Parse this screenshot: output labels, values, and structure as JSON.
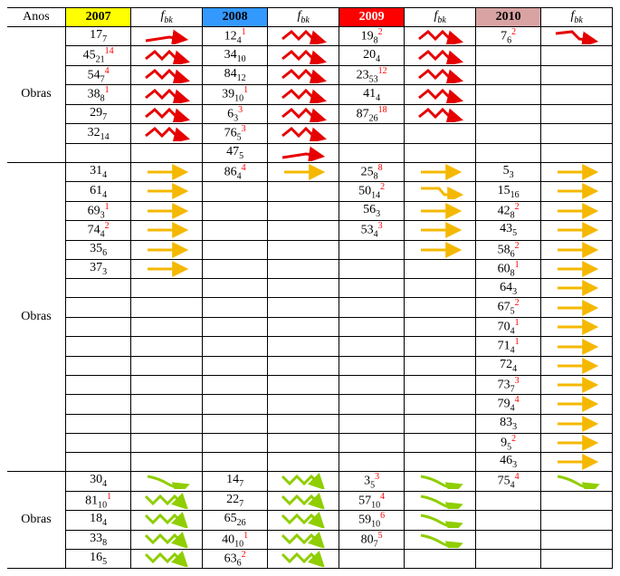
{
  "header": {
    "anos": "Anos",
    "years": [
      "2007",
      "2008",
      "2009",
      "2010"
    ],
    "fbk": "f",
    "fbk_sub": "bk",
    "year_colors": {
      "2007": "#ffff00",
      "2008": "#3399ff",
      "2009": "#ff0000",
      "2010": "#d9a3a3"
    }
  },
  "icon_colors": {
    "red": "#e60000",
    "yellow": "#f5b800",
    "green": "#8fce00"
  },
  "groups": [
    {
      "label": "Obras",
      "rows": [
        {
          "c2007": {
            "main": "17",
            "sub": "7"
          },
          "i2007": "red-up",
          "c2008": {
            "main": "12",
            "sub": "4",
            "sup": "1"
          },
          "i2008": "red-zz",
          "c2009": {
            "main": "19",
            "sub": "8",
            "sup": "2"
          },
          "i2009": "red-zz",
          "c2010": {
            "main": "7",
            "sub": "6",
            "sup": "2"
          },
          "i2010": "red-down"
        },
        {
          "c2007": {
            "main": "45",
            "sub": "21",
            "sup": "14"
          },
          "i2007": "red-zz",
          "c2008": {
            "main": "34",
            "sub": "10"
          },
          "i2008": "red-zz",
          "c2009": {
            "main": "20",
            "sub": "4"
          },
          "i2009": "red-zz"
        },
        {
          "c2007": {
            "main": "54",
            "sub": "7",
            "sup": "4"
          },
          "i2007": "red-zz",
          "c2008": {
            "main": "84",
            "sub": "12"
          },
          "i2008": "red-zz",
          "c2009": {
            "main": "23",
            "sub": "53",
            "sup": "12"
          },
          "i2009": "red-zz"
        },
        {
          "c2007": {
            "main": "38",
            "sub": "8",
            "sup": "1"
          },
          "i2007": "red-zz",
          "c2008": {
            "main": "39",
            "sub": "10",
            "sup": "1"
          },
          "i2008": "red-zz",
          "c2009": {
            "main": "41",
            "sub": "4"
          },
          "i2009": "red-zz"
        },
        {
          "c2007": {
            "main": "29",
            "sub": "7"
          },
          "i2007": "red-zz",
          "c2008": {
            "main": "6",
            "sub": "3",
            "sup": "3"
          },
          "i2008": "red-zz",
          "c2009": {
            "main": "87",
            "sub": "26",
            "sup": "18"
          },
          "i2009": "red-zz"
        },
        {
          "c2007": {
            "main": "32",
            "sub": "14"
          },
          "i2007": "red-zz",
          "c2008": {
            "main": "76",
            "sub": "5",
            "sup": "3"
          },
          "i2008": "red-zz"
        },
        {
          "c2008": {
            "main": "47",
            "sub": "5"
          },
          "i2008": "red-up"
        }
      ]
    },
    {
      "label": "Obras",
      "rows": [
        {
          "c2007": {
            "main": "31",
            "sub": "4"
          },
          "i2007": "yel",
          "c2008": {
            "main": "86",
            "sub": "4",
            "sup": "4"
          },
          "i2008": "yel",
          "c2009": {
            "main": "25",
            "sub": "8",
            "sup": "8"
          },
          "i2009": "yel",
          "c2010": {
            "main": "5",
            "sub": "3"
          },
          "i2010": "yel"
        },
        {
          "c2007": {
            "main": "61",
            "sub": "4"
          },
          "i2007": "yel",
          "c2009": {
            "main": "50",
            "sub": "14",
            "sup": "2"
          },
          "i2009": "yel-step",
          "c2010": {
            "main": "15",
            "sub": "16"
          },
          "i2010": "yel"
        },
        {
          "c2007": {
            "main": "69",
            "sub": "3",
            "sup": "1"
          },
          "i2007": "yel",
          "c2009": {
            "main": "56",
            "sub": "3"
          },
          "i2009": "yel",
          "c2010": {
            "main": "42",
            "sub": "8",
            "sup": "2"
          },
          "i2010": "yel"
        },
        {
          "c2007": {
            "main": "74",
            "sub": "4",
            "sup": "2"
          },
          "i2007": "yel",
          "c2009": {
            "main": "53",
            "sub": "4",
            "sup": "3"
          },
          "i2009": "yel",
          "c2010": {
            "main": "43",
            "sub": "5"
          },
          "i2010": "yel"
        },
        {
          "c2007": {
            "main": "35",
            "sub": "6"
          },
          "i2007": "yel",
          "i2009": "yel",
          "c2010": {
            "main": "58",
            "sub": "6",
            "sup": "2"
          },
          "i2010": "yel"
        },
        {
          "c2007": {
            "main": "37",
            "sub": "3"
          },
          "i2007": "yel",
          "c2010": {
            "main": "60",
            "sub": "8",
            "sup": "1"
          },
          "i2010": "yel"
        },
        {
          "c2010": {
            "main": "64",
            "sub": "3"
          },
          "i2010": "yel"
        },
        {
          "c2010": {
            "main": "67",
            "sub": "5",
            "sup": "2"
          },
          "i2010": "yel"
        },
        {
          "c2010": {
            "main": "70",
            "sub": "4",
            "sup": "1"
          },
          "i2010": "yel"
        },
        {
          "c2010": {
            "main": "71",
            "sub": "4",
            "sup": "1"
          },
          "i2010": "yel"
        },
        {
          "c2010": {
            "main": "72",
            "sub": "4"
          },
          "i2010": "yel"
        },
        {
          "c2010": {
            "main": "73",
            "sub": "7",
            "sup": "3"
          },
          "i2010": "yel"
        },
        {
          "c2010": {
            "main": "79",
            "sub": "4",
            "sup": "4"
          },
          "i2010": "yel"
        },
        {
          "c2010": {
            "main": "83",
            "sub": "3"
          },
          "i2010": "yel"
        },
        {
          "c2010": {
            "main": "9",
            "sub": "5",
            "sup": "2"
          },
          "i2010": "yel"
        },
        {
          "c2010": {
            "main": "46",
            "sub": "3"
          },
          "i2010": "yel"
        }
      ]
    },
    {
      "label": "Obras",
      "rows": [
        {
          "c2007": {
            "main": "30",
            "sub": "4"
          },
          "i2007": "grn-curve",
          "c2008": {
            "main": "14",
            "sub": "7"
          },
          "i2008": "grn-zz",
          "c2009": {
            "main": "3",
            "sub": "5",
            "sup": "3"
          },
          "i2009": "grn-curve",
          "c2010": {
            "main": "75",
            "sub": "4",
            "sup": "4"
          },
          "i2010": "grn-curve"
        },
        {
          "c2007": {
            "main": "81",
            "sub": "10",
            "sup": "1"
          },
          "i2007": "grn-zz",
          "c2008": {
            "main": "22",
            "sub": "7"
          },
          "i2008": "grn-zz",
          "c2009": {
            "main": "57",
            "sub": "10",
            "sup": "4"
          },
          "i2009": "grn-curve"
        },
        {
          "c2007": {
            "main": "18",
            "sub": "4"
          },
          "i2007": "grn-zz",
          "c2008": {
            "main": "65",
            "sub": "26"
          },
          "i2008": "grn-zz",
          "c2009": {
            "main": "59",
            "sub": "10",
            "sup": "6"
          },
          "i2009": "grn-curve"
        },
        {
          "c2007": {
            "main": "33",
            "sub": "8"
          },
          "i2007": "grn-zz",
          "c2008": {
            "main": "40",
            "sub": "10",
            "sup": "1"
          },
          "i2008": "grn-zz",
          "c2009": {
            "main": "80",
            "sub": "7",
            "sup": "5"
          },
          "i2009": "grn-curve"
        },
        {
          "c2007": {
            "main": "16",
            "sub": "5"
          },
          "i2007": "grn-zz",
          "c2008": {
            "main": "63",
            "sub": "6",
            "sup": "2"
          },
          "i2008": "grn-zz"
        }
      ]
    }
  ]
}
